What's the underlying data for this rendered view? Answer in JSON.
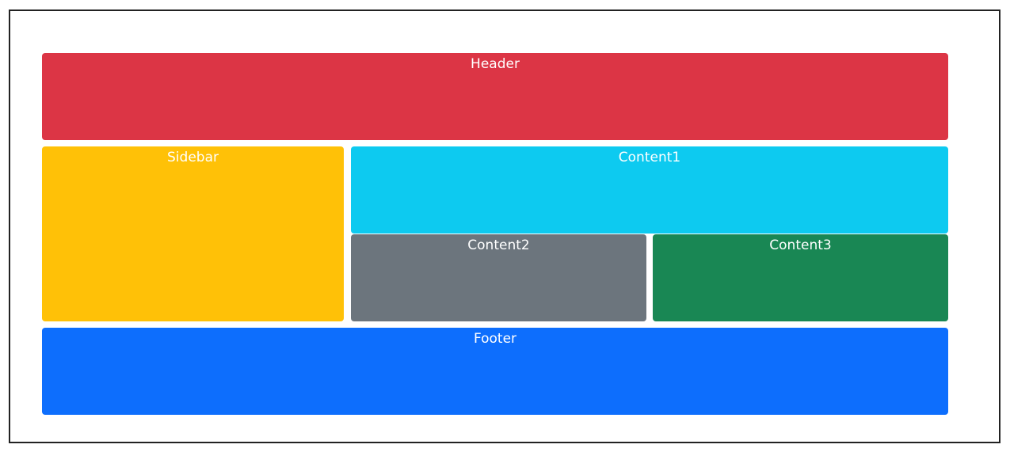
{
  "blocks": {
    "header": {
      "label": "Header",
      "color": "#dc3545"
    },
    "sidebar": {
      "label": "Sidebar",
      "color": "#ffc107"
    },
    "content1": {
      "label": "Content1",
      "color": "#0dcaf0"
    },
    "content2": {
      "label": "Content2",
      "color": "#6c757d"
    },
    "content3": {
      "label": "Content3",
      "color": "#198754"
    },
    "footer": {
      "label": "Footer",
      "color": "#0d6efd"
    }
  }
}
